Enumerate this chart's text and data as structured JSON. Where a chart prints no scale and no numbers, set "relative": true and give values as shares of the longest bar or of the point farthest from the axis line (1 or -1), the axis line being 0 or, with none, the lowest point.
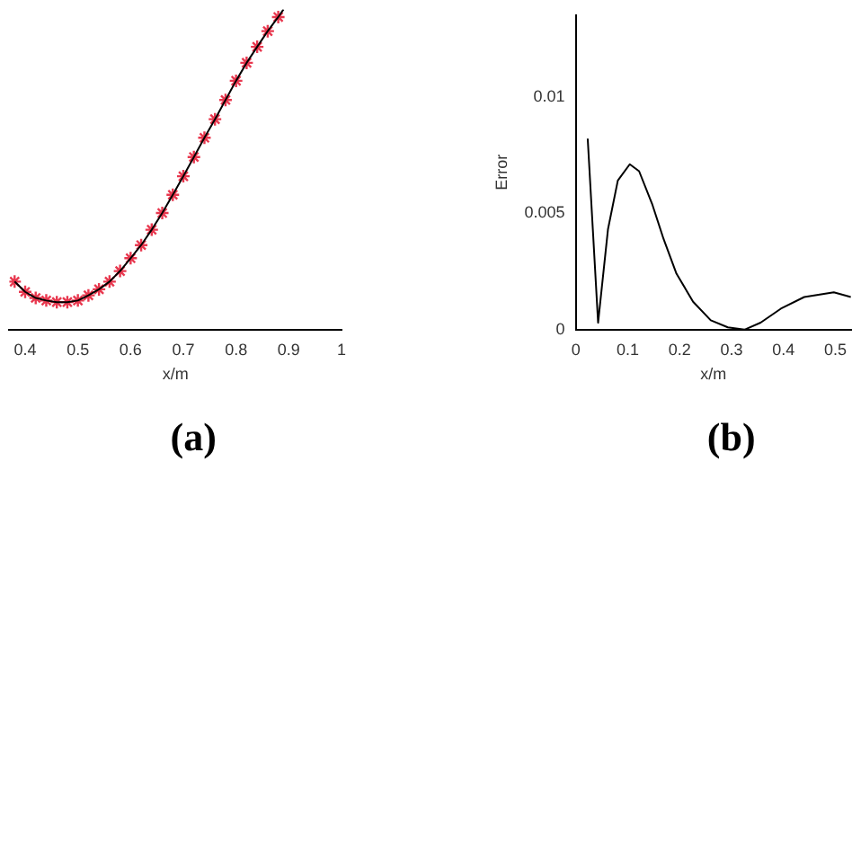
{
  "chart_data": [
    {
      "type": "line",
      "relative": true,
      "xlabel": "x/m",
      "annotations": [
        "(a)"
      ],
      "xlim": [
        0.37,
        1
      ],
      "xticks": [
        0.4,
        0.5,
        0.6,
        0.7,
        0.8,
        0.9,
        1
      ],
      "grid": false,
      "legend": false,
      "series": [
        {
          "type": "line",
          "color": "#000000",
          "marker": "none",
          "x": [
            0.38,
            0.4,
            0.42,
            0.44,
            0.46,
            0.48,
            0.5,
            0.52,
            0.54,
            0.56,
            0.58,
            0.6,
            0.62,
            0.64,
            0.66,
            0.68,
            0.7,
            0.72,
            0.74,
            0.76,
            0.78,
            0.8,
            0.82,
            0.84,
            0.86,
            0.88,
            0.89
          ],
          "values": [
            0.15,
            0.118,
            0.099,
            0.091,
            0.086,
            0.086,
            0.091,
            0.107,
            0.126,
            0.15,
            0.183,
            0.223,
            0.264,
            0.312,
            0.364,
            0.421,
            0.479,
            0.539,
            0.599,
            0.657,
            0.717,
            0.777,
            0.833,
            0.883,
            0.932,
            0.976,
            1
          ]
        },
        {
          "type": "scatter",
          "color": "#e8384f",
          "marker": "cross",
          "x": [
            0.38,
            0.4,
            0.42,
            0.44,
            0.46,
            0.48,
            0.5,
            0.52,
            0.54,
            0.56,
            0.58,
            0.6,
            0.62,
            0.64,
            0.66,
            0.68,
            0.7,
            0.72,
            0.74,
            0.76,
            0.78,
            0.8,
            0.82,
            0.84,
            0.86,
            0.88
          ],
          "values": [
            0.15,
            0.118,
            0.099,
            0.091,
            0.086,
            0.086,
            0.091,
            0.107,
            0.126,
            0.15,
            0.183,
            0.223,
            0.264,
            0.312,
            0.364,
            0.421,
            0.479,
            0.539,
            0.599,
            0.657,
            0.717,
            0.777,
            0.833,
            0.883,
            0.932,
            0.976
          ]
        }
      ]
    },
    {
      "type": "line",
      "xlabel": "x/m",
      "ylabel": "Error",
      "annotations": [
        "(b)"
      ],
      "xlim": [
        0,
        0.53
      ],
      "xticks": [
        0,
        0.1,
        0.2,
        0.3,
        0.4,
        0.5
      ],
      "ylim": [
        0,
        0.0135
      ],
      "yticks": [
        0,
        0.005,
        0.01
      ],
      "grid": false,
      "legend": false,
      "series": [
        {
          "type": "line",
          "color": "#000000",
          "marker": "none",
          "x": [
            0.023,
            0.043,
            0.062,
            0.081,
            0.104,
            0.122,
            0.147,
            0.169,
            0.194,
            0.226,
            0.26,
            0.293,
            0.325,
            0.356,
            0.395,
            0.44,
            0.497,
            0.53
          ],
          "values": [
            0.0082,
            0.0003,
            0.0043,
            0.0064,
            0.0071,
            0.0068,
            0.0054,
            0.0039,
            0.0024,
            0.0012,
            0.0004,
            0.0001,
            0,
            0.0003,
            0.0009,
            0.0014,
            0.0016,
            0.0014
          ]
        }
      ]
    }
  ]
}
